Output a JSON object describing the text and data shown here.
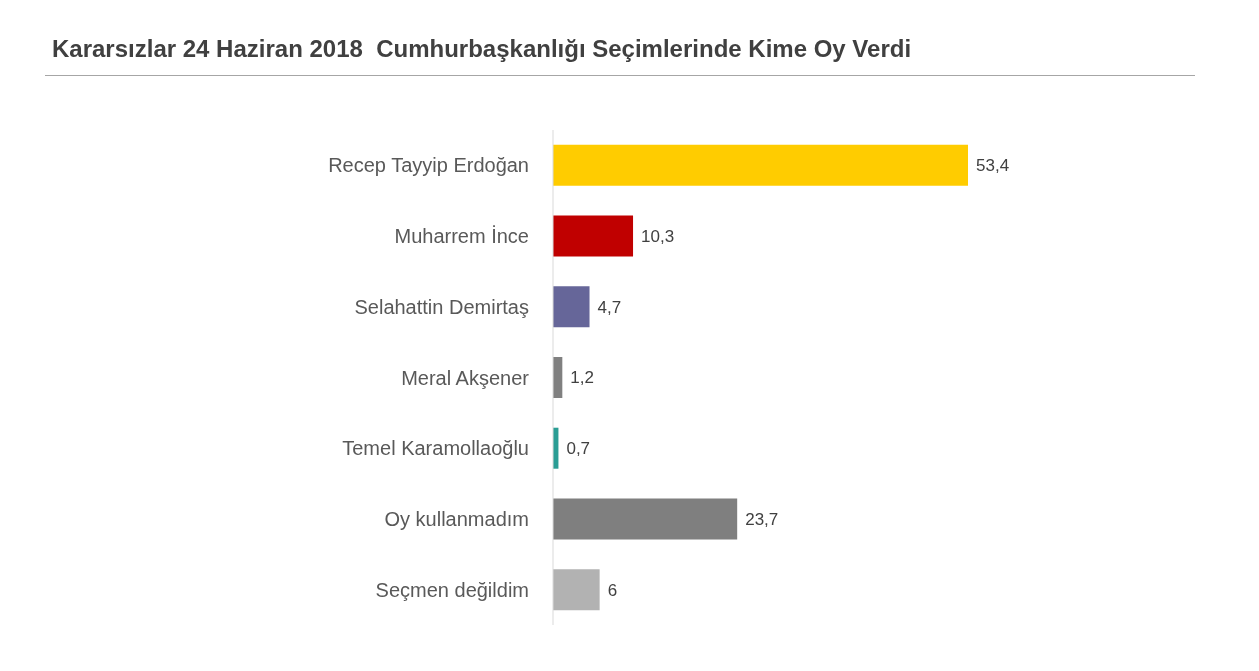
{
  "chart_data": {
    "type": "bar",
    "orientation": "horizontal",
    "title": "Kararsızlar 24 Haziran 2018  Cumhurbaşkanlığı Seçimlerinde Kime Oy Verdi",
    "categories": [
      "Recep Tayyip Erdoğan",
      "Muharrem İnce",
      "Selahattin Demirtaş",
      "Meral Akşener",
      "Temel Karamollaoğlu",
      "Oy kullanmadım",
      "Seçmen değildim"
    ],
    "values": [
      53.4,
      10.3,
      4.7,
      1.2,
      0.7,
      23.7,
      6
    ],
    "colors": [
      "#ffcc00",
      "#c00000",
      "#666699",
      "#808080",
      "#2a9d94",
      "#7f7f7f",
      "#b2b2b2"
    ],
    "value_labels": [
      "53,4",
      "10,3",
      "4,7",
      "1,2",
      "0,7",
      "23,7",
      "6"
    ]
  }
}
